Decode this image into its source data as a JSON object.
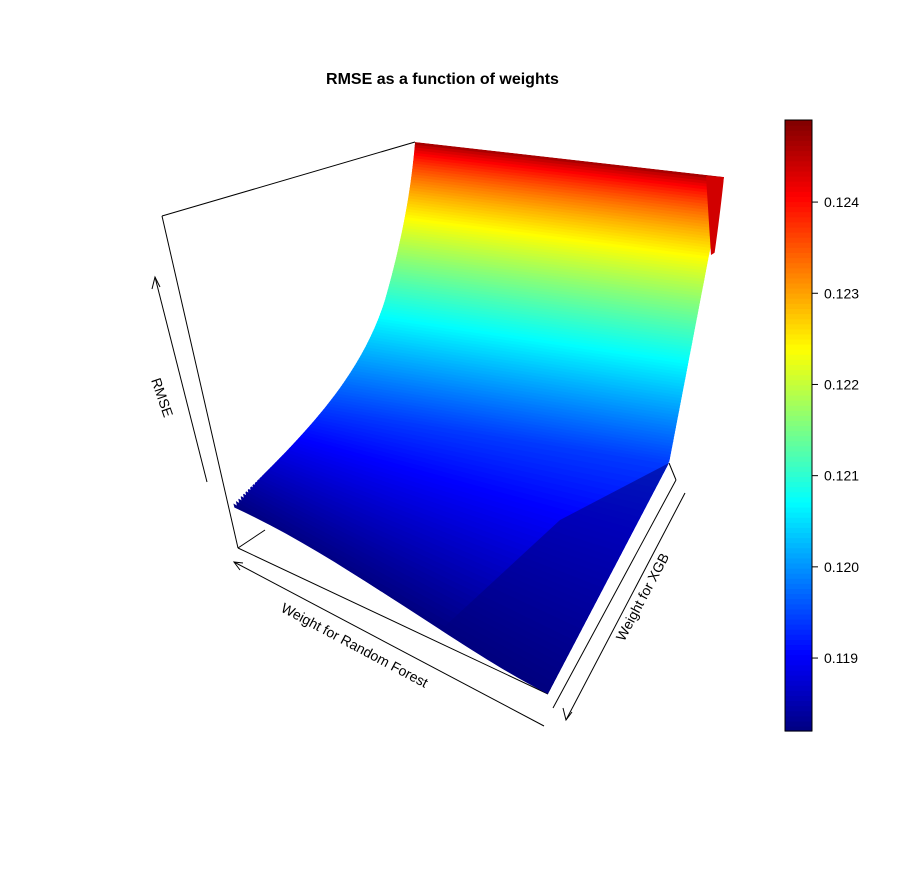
{
  "chart_data": {
    "type": "surface3d",
    "title": "RMSE as a function of weights",
    "xlabel": "Weight for Random Forest",
    "ylabel": "Weight for XGB",
    "zlabel": "RMSE",
    "zlim": [
      0.1182,
      0.1249
    ],
    "colorbar": {
      "palette": "jet",
      "ticks": [
        0.119,
        0.12,
        0.121,
        0.122,
        0.123,
        0.124
      ],
      "tick_labels": [
        "0.119",
        "0.120",
        "0.121",
        "0.122",
        "0.123",
        "0.124"
      ],
      "range": [
        0.1182,
        0.1249
      ]
    },
    "grid": false,
    "legend": "right"
  }
}
